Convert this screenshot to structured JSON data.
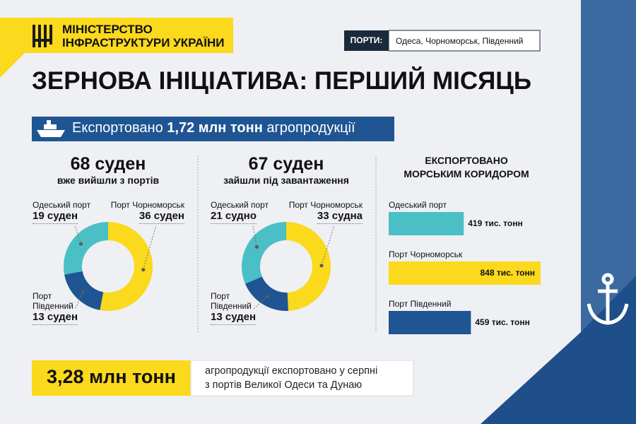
{
  "header": {
    "ministry": [
      "МІНІСТЕРСТВО",
      "ІНФРАСТРУКТУРИ УКРАЇНИ"
    ],
    "ports_label": "ПОРТИ:",
    "ports": "Одеса, Чорноморськ, Південний",
    "title": "ЗЕРНОВА ІНІЦІАТИВА: ПЕРШИЙ МІСЯЦЬ"
  },
  "banner": {
    "parts": [
      "Експортовано",
      "1,72 млн тонн",
      "агропродукції"
    ]
  },
  "chart_data": [
    {
      "type": "pie",
      "donut": true,
      "title": "68 суден",
      "subtitle": "вже вийшли з портів",
      "categories": [
        "Порт Чорноморськ",
        "Порт Південний",
        "Одеський порт"
      ],
      "values": [
        36,
        13,
        19
      ],
      "value_labels": [
        "36 суден",
        "13 суден",
        "19 суден"
      ],
      "colors": [
        "#fbd91c",
        "#1f5592",
        "#4bbfc6"
      ]
    },
    {
      "type": "pie",
      "donut": true,
      "title": "67 суден",
      "subtitle": "зайшли під завантаження",
      "categories": [
        "Порт Чорноморськ",
        "Порт Південний",
        "Одеський порт"
      ],
      "values": [
        33,
        13,
        21
      ],
      "value_labels": [
        "33 судна",
        "13 суден",
        "21 судно"
      ],
      "colors": [
        "#fbd91c",
        "#1f5592",
        "#4bbfc6"
      ]
    },
    {
      "type": "bar",
      "orientation": "horizontal",
      "title": "ЕКСПОРТОВАНО МОРСЬКИМ КОРИДОРОМ",
      "categories": [
        "Одеський порт",
        "Порт Чорноморськ",
        "Порт Південний"
      ],
      "values": [
        419,
        848,
        459
      ],
      "value_labels": [
        "419 тис. тонн",
        "848 тис. тонн",
        "459 тис. тонн"
      ],
      "colors": [
        "#4bbfc6",
        "#fbd91c",
        "#1f5592"
      ]
    }
  ],
  "footer": {
    "total": "3,28 млн тонн",
    "text": [
      "агропродукції експортовано у серпні",
      "з портів Великої Одеси та Дунаю"
    ]
  }
}
